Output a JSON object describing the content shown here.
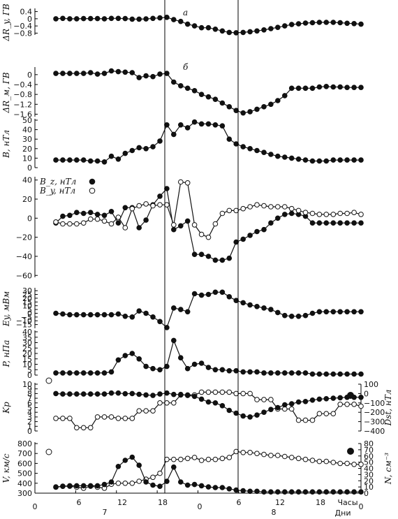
{
  "chart_data": [
    {
      "type": "line",
      "panel_label": "а",
      "ylabel": "ΔR_y, ГВ",
      "ylim": [
        -0.9,
        0.5
      ],
      "yticks": [
        0.4,
        0,
        -0.4,
        -0.8
      ],
      "yticklabels": [
        "0.4",
        "0",
        "−0.4",
        "−0.8"
      ],
      "series": [
        {
          "marker": "filled",
          "values": [
            0,
            0.02,
            0,
            0,
            0.01,
            0.01,
            0.01,
            0,
            0.02,
            0.02,
            0.01,
            -0.02,
            -0.02,
            -0.01,
            0.02,
            0.05,
            0.08,
            -0.05,
            -0.15,
            -0.3,
            -0.4,
            -0.5,
            -0.5,
            -0.58,
            -0.68,
            -0.76,
            -0.78,
            -0.76,
            -0.72,
            -0.68,
            -0.62,
            -0.55,
            -0.48,
            -0.4,
            -0.32,
            -0.28,
            -0.24,
            -0.22,
            -0.2,
            -0.2,
            -0.2,
            -0.22,
            -0.25,
            -0.27,
            -0.3
          ]
        }
      ]
    },
    {
      "type": "line",
      "panel_label": "б",
      "ylabel": "ΔR_м, ГВ",
      "ylim": [
        -1.7,
        0.25
      ],
      "yticks": [
        0,
        -0.4,
        -0.8,
        -1.2,
        -1.6
      ],
      "yticklabels": [
        "0",
        "−0.4",
        "−0.8",
        "−1.2",
        "−1.6"
      ],
      "series": [
        {
          "marker": "filled",
          "values": [
            0.05,
            0.05,
            0.05,
            0.05,
            0.05,
            0.08,
            0.02,
            0.05,
            0.15,
            0.12,
            0.1,
            0.08,
            -0.12,
            -0.05,
            -0.08,
            0.02,
            0.05,
            -0.3,
            -0.45,
            -0.55,
            -0.65,
            -0.8,
            -0.9,
            -1.0,
            -1.15,
            -1.3,
            -1.45,
            -1.55,
            -1.5,
            -1.4,
            -1.3,
            -1.2,
            -1.05,
            -0.85,
            -0.55,
            -0.55,
            -0.55,
            -0.55,
            -0.5,
            -0.48,
            -0.5,
            -0.5,
            -0.52,
            -0.52,
            -0.52
          ]
        }
      ]
    },
    {
      "type": "line",
      "ylabel": "B, нТл",
      "ylim": [
        0,
        50
      ],
      "yticks": [
        0,
        10,
        20,
        30,
        40,
        50
      ],
      "yticklabels": [
        "0",
        "10",
        "20",
        "30",
        "40",
        "50"
      ],
      "series": [
        {
          "marker": "filled",
          "values": [
            8,
            8,
            8,
            8,
            8,
            7,
            7,
            6,
            12,
            9,
            15,
            18,
            21,
            20,
            22,
            28,
            45,
            35,
            45,
            42,
            48,
            46,
            46,
            45,
            44,
            30,
            25,
            22,
            20,
            18,
            16,
            14,
            12,
            11,
            10,
            9,
            8,
            7,
            7,
            7,
            8,
            8,
            8,
            8,
            8
          ]
        }
      ]
    },
    {
      "type": "line",
      "yticks": [
        40,
        20,
        0,
        -20,
        -40,
        -60
      ],
      "ylim": [
        -62,
        42
      ],
      "yticklabels": [
        "40",
        "20",
        "0",
        "−20",
        "−40",
        "−60"
      ],
      "legend": [
        {
          "label": "B_z, нТл",
          "marker": "filled"
        },
        {
          "label": "B_y, нТл",
          "marker": "open"
        }
      ],
      "series": [
        {
          "name": "B_z, нТл",
          "marker": "filled",
          "values": [
            -5,
            2,
            3,
            6,
            5,
            6,
            4,
            3,
            7,
            -5,
            11,
            11,
            -10,
            -2,
            14,
            23,
            31,
            -12,
            -8,
            -3,
            -38,
            -38,
            -40,
            -44,
            -44,
            -42,
            -25,
            -22,
            -18,
            -14,
            -12,
            -5,
            0,
            4,
            5,
            4,
            2,
            -5,
            -5,
            -5,
            -5,
            -5,
            -5,
            -5,
            -5
          ]
        },
        {
          "name": "B_y, нТл",
          "marker": "open",
          "values": [
            -4,
            -6,
            -6,
            -6,
            -5,
            -1,
            -1,
            -3,
            -6,
            1,
            -10,
            10,
            13,
            15,
            13,
            14,
            14,
            -7,
            38,
            37,
            -7,
            -17,
            -20,
            -6,
            5,
            8,
            8,
            10,
            12,
            14,
            13,
            12,
            12,
            12,
            10,
            8,
            6,
            5,
            4,
            4,
            4,
            5,
            5,
            6,
            4
          ]
        }
      ]
    },
    {
      "type": "line",
      "ylabel": "Ey, мВм",
      "ylim": [
        -20,
        32
      ],
      "yticks": [
        30,
        25,
        20,
        15,
        10,
        5,
        0,
        -5,
        -10,
        -15
      ],
      "yticklabels": [
        "30",
        "25",
        "20",
        "15",
        "10",
        "5",
        "0",
        "−5",
        "−10",
        "−15"
      ],
      "series": [
        {
          "marker": "filled",
          "values": [
            0,
            -1,
            -2,
            -2,
            -2,
            -2,
            -2,
            -2,
            -2,
            -1,
            -4,
            -5,
            3,
            0,
            -5,
            -11,
            -19,
            7,
            5,
            2,
            26,
            24,
            25,
            28,
            28,
            22,
            17,
            14,
            11,
            9,
            7,
            5,
            1,
            -3,
            -4,
            -4,
            -3,
            0,
            2,
            2,
            2,
            2,
            2,
            2,
            2
          ]
        }
      ]
    },
    {
      "type": "line",
      "ylabel": "P, нПа",
      "ylim": [
        0,
        40
      ],
      "yticks": [
        0,
        5,
        10,
        15,
        20,
        25,
        30,
        35,
        40
      ],
      "yticklabels": [
        "0",
        "5",
        "10",
        "15",
        "20",
        "25",
        "30",
        "35",
        "40"
      ],
      "series": [
        {
          "marker": "filled",
          "values": [
            2,
            2,
            2,
            2,
            2,
            2,
            2,
            2,
            3,
            14,
            18,
            20,
            15,
            8,
            6,
            5,
            8,
            32,
            16,
            6,
            10,
            11,
            7,
            5,
            5,
            4,
            4,
            3,
            3,
            3,
            2,
            2,
            2,
            2,
            2,
            2,
            2,
            1,
            1,
            1,
            1,
            1,
            1,
            1,
            1
          ]
        }
      ]
    },
    {
      "type": "line",
      "ylabel": "Kp",
      "ylabel_right": "Dst, нТл",
      "ylim": [
        0,
        10
      ],
      "yticks": [
        0,
        1,
        2,
        3,
        4,
        5,
        6,
        7,
        8,
        9,
        10
      ],
      "yticklabels": [
        "0",
        "1",
        "2",
        "3",
        "4",
        "5",
        "6",
        "7",
        "8",
        "9",
        "10"
      ],
      "ylim_right": [
        -400,
        100
      ],
      "yticks_right": [
        100,
        0,
        -100,
        -200,
        -300,
        -400
      ],
      "yticklabels_right": [
        "100",
        "0",
        "−100",
        "−200",
        "−300",
        "−400"
      ],
      "series": [
        {
          "name": "Kp",
          "marker": "open",
          "axis": "left",
          "values": [
            2.7,
            2.7,
            2.7,
            0.7,
            0.7,
            0.7,
            3.0,
            3.0,
            3.0,
            2.7,
            2.7,
            2.7,
            4.3,
            4.3,
            4.3,
            6.0,
            6.0,
            6.0,
            7.7,
            7.7,
            7.7,
            8.3,
            8.3,
            8.3,
            8.3,
            8.3,
            8.0,
            8.0,
            8.0,
            6.7,
            6.7,
            6.7,
            4.7,
            4.7,
            4.7,
            2.3,
            2.3,
            2.3,
            3.7,
            3.7,
            3.7,
            5.7,
            5.7,
            5.7,
            5.3
          ]
        },
        {
          "name": "Dst, нТл",
          "marker": "filled",
          "axis": "right",
          "values": [
            0,
            -5,
            -5,
            -5,
            -5,
            -5,
            -5,
            -5,
            5,
            5,
            -2,
            0,
            -8,
            -15,
            -20,
            -5,
            5,
            -10,
            -10,
            -20,
            -30,
            -60,
            -90,
            -100,
            -130,
            -180,
            -210,
            -240,
            -250,
            -230,
            -200,
            -170,
            -150,
            -120,
            -110,
            -90,
            -85,
            -70,
            -60,
            -55,
            -50,
            -45,
            -40,
            -40,
            -40
          ]
        }
      ]
    },
    {
      "type": "line",
      "ylabel": "V, км/с",
      "ylabel_right": "N, см⁻³",
      "ylim": [
        300,
        800
      ],
      "yticks": [
        300,
        400,
        500,
        600,
        700,
        800
      ],
      "yticklabels": [
        "300",
        "400",
        "500",
        "600",
        "700",
        "800"
      ],
      "ylim_right": [
        0,
        80
      ],
      "yticks_right": [
        0,
        10,
        20,
        30,
        40,
        50,
        60,
        70,
        80
      ],
      "yticklabels_right": [
        "0",
        "10",
        "20",
        "30",
        "40",
        "50",
        "60",
        "70",
        "80"
      ],
      "series": [
        {
          "name": "V, км/с",
          "marker": "open",
          "axis": "left",
          "values": [
            360,
            370,
            370,
            360,
            350,
            370,
            360,
            350,
            390,
            400,
            400,
            400,
            420,
            440,
            460,
            500,
            640,
            640,
            640,
            650,
            660,
            630,
            640,
            640,
            650,
            660,
            720,
            710,
            710,
            700,
            690,
            680,
            680,
            670,
            660,
            650,
            640,
            630,
            620,
            620,
            610,
            600,
            600,
            590,
            590
          ]
        },
        {
          "name": "N, см⁻³",
          "marker": "filled",
          "axis": "right",
          "values": [
            10,
            11,
            12,
            12,
            12,
            12,
            12,
            14,
            18,
            43,
            53,
            58,
            45,
            18,
            13,
            11,
            19,
            42,
            18,
            13,
            14,
            12,
            10,
            9,
            9,
            7,
            5,
            4,
            3,
            3,
            2,
            2,
            2,
            2,
            2,
            2,
            2,
            2,
            2,
            2,
            2,
            2,
            2,
            2,
            2
          ]
        }
      ]
    }
  ],
  "x_axis": {
    "hour_labels": [
      "0",
      "6",
      "12",
      "18",
      "0",
      "6",
      "12",
      "18",
      "0"
    ],
    "day_labels": [
      "7",
      "8"
    ],
    "hours_caption": "Часы",
    "days_caption": "Дни"
  }
}
